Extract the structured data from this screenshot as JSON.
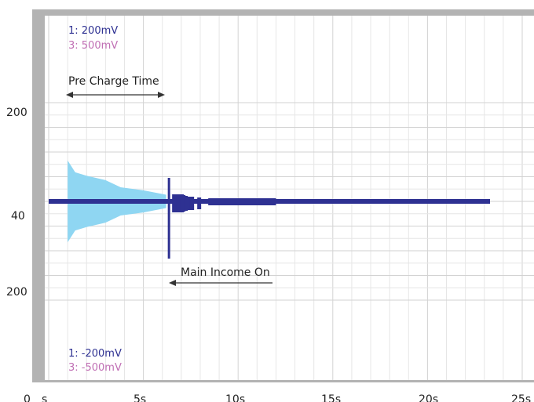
{
  "chart_data": {
    "type": "line",
    "scale_labels": {
      "ch1_top": "1: 200mV",
      "ch3_top": "3: 500mV",
      "ch1_bottom": "1: -200mV",
      "ch3_bottom": "3: -500mV"
    },
    "y_tick_labels": [
      "200",
      "40",
      "200"
    ],
    "x_tick_labels": [
      "0",
      "s",
      "5s",
      "10s",
      "15s",
      "20s",
      "25s"
    ],
    "xlim": [
      0,
      25
    ],
    "grid": true,
    "annotations": {
      "pre_charge": "Pre Charge Time",
      "main_income": "Main Income On"
    },
    "series": [
      {
        "channel": "3",
        "color": "#8fd6f2",
        "x": [
          1.0,
          1.4,
          2.0,
          3.0,
          3.8,
          5.0,
          6.2
        ],
        "env": [
          1.66,
          1.18,
          1.04,
          0.86,
          0.57,
          0.45,
          0.27
        ]
      },
      {
        "channel": "1",
        "color": "#2e3192",
        "x_start": 0.0,
        "x_end": 23.3,
        "spike_at": 6.35
      }
    ],
    "colors": {
      "background": "#ffffff",
      "border": "#b3b3b3",
      "grid": "#d2d2d2",
      "grid_minor": "#e6e6e6",
      "ch1": "#2e3192",
      "ch3": "#c06fb4",
      "annotation": "#333333"
    }
  }
}
